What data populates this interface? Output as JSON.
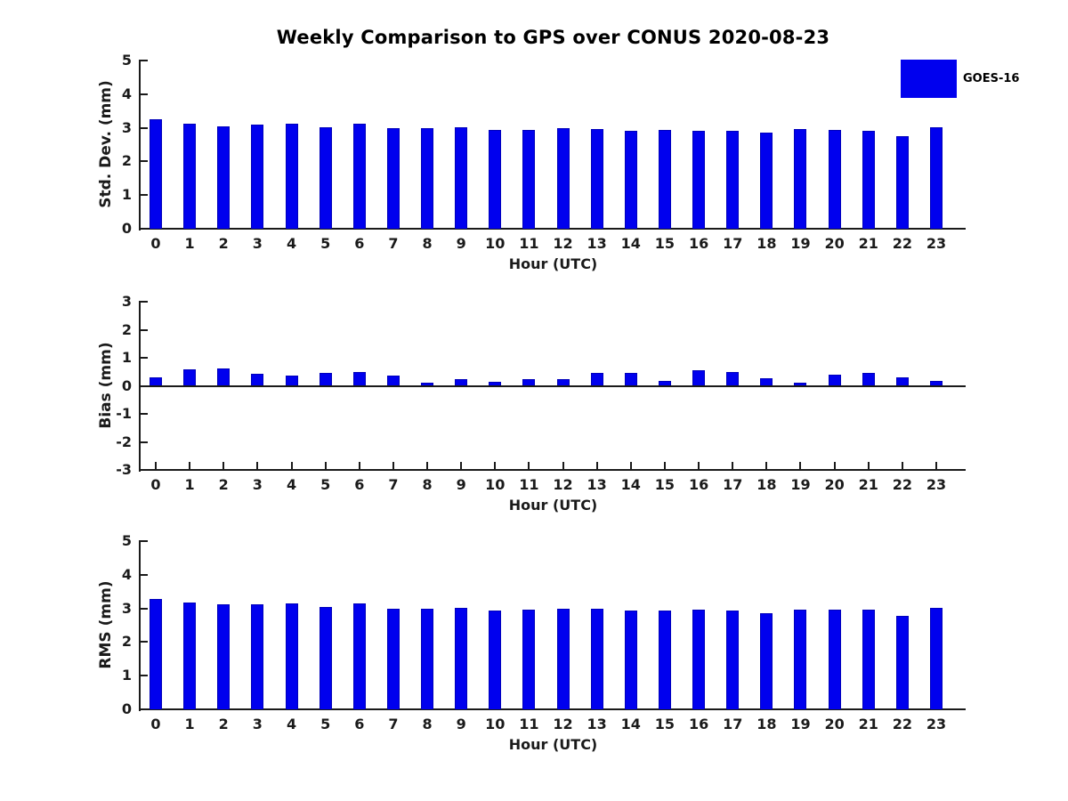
{
  "title": "Weekly Comparison to GPS over CONUS 2020-08-23",
  "legend": {
    "label": "GOES-16",
    "swatch_color": "#0000ee"
  },
  "colors": {
    "bar_fill": "#0000ee",
    "bar_edge": "#0000bb",
    "axis": "#1a1a1a",
    "background": "#ffffff"
  },
  "chart_data": [
    {
      "type": "bar",
      "name": "std-dev",
      "ylabel": "Std. Dev. (mm)",
      "xlabel": "Hour (UTC)",
      "categories": [
        0,
        1,
        2,
        3,
        4,
        5,
        6,
        7,
        8,
        9,
        10,
        11,
        12,
        13,
        14,
        15,
        16,
        17,
        18,
        19,
        20,
        21,
        22,
        23
      ],
      "series": [
        {
          "name": "GOES-16",
          "values": [
            3.25,
            3.12,
            3.04,
            3.1,
            3.12,
            3.01,
            3.12,
            2.98,
            2.98,
            3.01,
            2.94,
            2.94,
            2.99,
            2.97,
            2.91,
            2.93,
            2.9,
            2.9,
            2.85,
            2.96,
            2.93,
            2.91,
            2.75,
            3.01
          ]
        }
      ],
      "ylim": [
        0,
        5
      ],
      "yticks": [
        0,
        1,
        2,
        3,
        4,
        5
      ],
      "grid": false,
      "legend_position": "top-right-outside"
    },
    {
      "type": "bar",
      "name": "bias",
      "ylabel": "Bias (mm)",
      "xlabel": "Hour (UTC)",
      "categories": [
        0,
        1,
        2,
        3,
        4,
        5,
        6,
        7,
        8,
        9,
        10,
        11,
        12,
        13,
        14,
        15,
        16,
        17,
        18,
        19,
        20,
        21,
        22,
        23
      ],
      "series": [
        {
          "name": "GOES-16",
          "values": [
            0.29,
            0.58,
            0.62,
            0.43,
            0.37,
            0.46,
            0.49,
            0.37,
            0.11,
            0.23,
            0.14,
            0.24,
            0.23,
            0.46,
            0.47,
            0.18,
            0.56,
            0.49,
            0.27,
            0.11,
            0.39,
            0.46,
            0.31,
            0.17
          ]
        }
      ],
      "ylim": [
        -3,
        3
      ],
      "yticks": [
        -3,
        -2,
        -1,
        0,
        1,
        2,
        3
      ],
      "grid": false
    },
    {
      "type": "bar",
      "name": "rms",
      "ylabel": "RMS (mm)",
      "xlabel": "Hour (UTC)",
      "categories": [
        0,
        1,
        2,
        3,
        4,
        5,
        6,
        7,
        8,
        9,
        10,
        11,
        12,
        13,
        14,
        15,
        16,
        17,
        18,
        19,
        20,
        21,
        22,
        23
      ],
      "series": [
        {
          "name": "GOES-16",
          "values": [
            3.27,
            3.17,
            3.11,
            3.13,
            3.16,
            3.05,
            3.16,
            3.0,
            2.99,
            3.01,
            2.94,
            2.95,
            3.0,
            3.0,
            2.94,
            2.94,
            2.95,
            2.94,
            2.86,
            2.96,
            2.95,
            2.95,
            2.77,
            3.02
          ]
        }
      ],
      "ylim": [
        0,
        5
      ],
      "yticks": [
        0,
        1,
        2,
        3,
        4,
        5
      ],
      "grid": false
    }
  ]
}
